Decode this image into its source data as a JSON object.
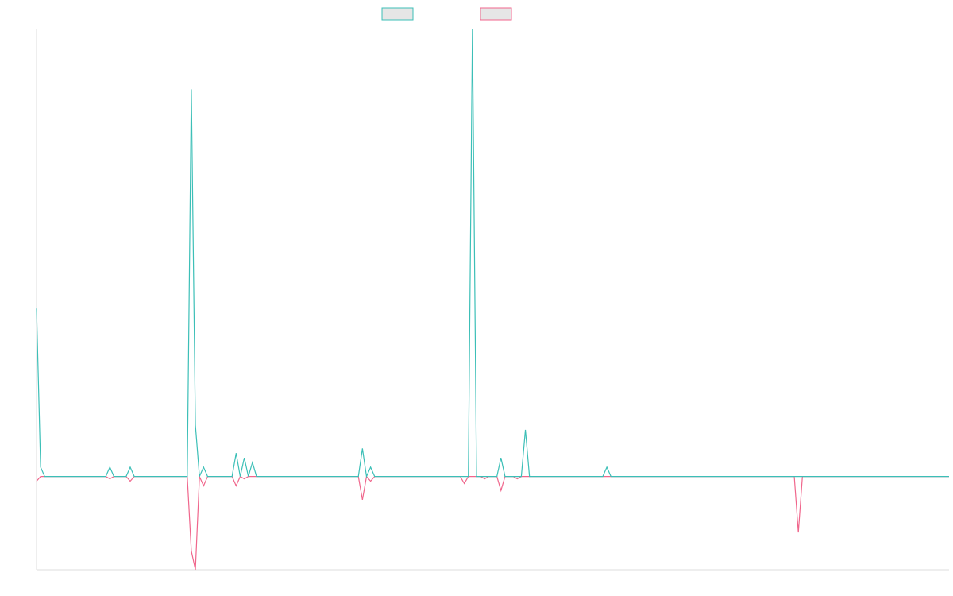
{
  "chart_data": {
    "type": "line",
    "title": "",
    "xlabel": "",
    "ylabel": "",
    "legend_position": "top-center",
    "grid": false,
    "x_count": 225,
    "ylim": [
      -20,
      96
    ],
    "colors": {
      "series_a": "#3cbfb7",
      "series_b": "#f0668c",
      "axis": "#dddddd",
      "swatch_fill": "#e6e6e6"
    },
    "series": [
      {
        "color": "#3cbfb7",
        "spikes": [
          [
            0,
            36
          ],
          [
            1,
            2
          ],
          [
            18,
            2
          ],
          [
            23,
            2
          ],
          [
            38,
            83
          ],
          [
            39,
            11
          ],
          [
            41,
            2
          ],
          [
            49,
            5
          ],
          [
            51,
            4
          ],
          [
            53,
            3
          ],
          [
            80,
            6
          ],
          [
            82,
            2
          ],
          [
            107,
            96
          ],
          [
            114,
            4
          ],
          [
            120,
            10
          ],
          [
            140,
            2
          ]
        ],
        "values": []
      },
      {
        "color": "#f0668c",
        "spikes": [
          [
            0,
            -1
          ],
          [
            18,
            -0.5
          ],
          [
            23,
            -1
          ],
          [
            38,
            -16
          ],
          [
            39,
            -20
          ],
          [
            41,
            -2
          ],
          [
            49,
            -2
          ],
          [
            51,
            -0.5
          ],
          [
            80,
            -5
          ],
          [
            82,
            -1
          ],
          [
            105,
            -1.5
          ],
          [
            110,
            -0.5
          ],
          [
            114,
            -3
          ],
          [
            118,
            -0.5
          ],
          [
            187,
            -12
          ]
        ],
        "values": []
      }
    ]
  }
}
